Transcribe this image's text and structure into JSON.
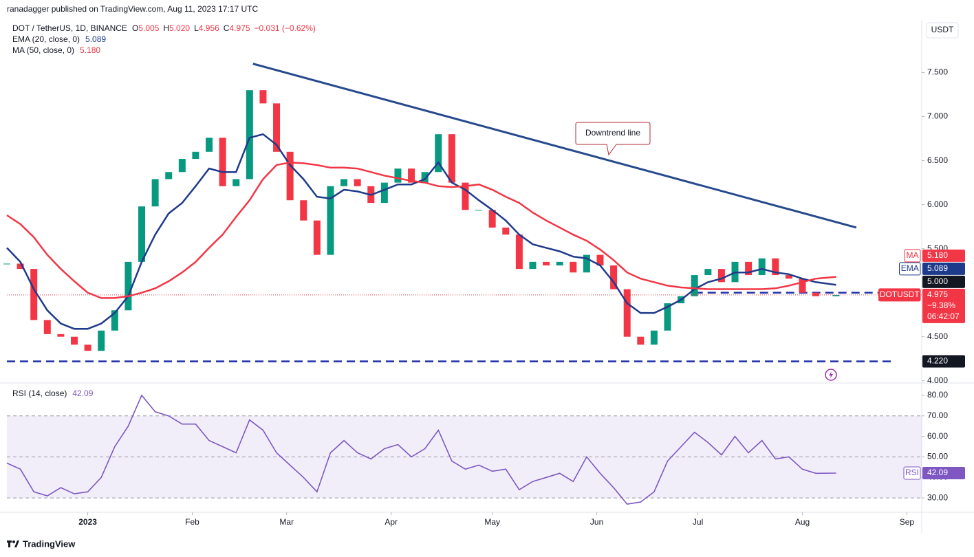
{
  "header": {
    "published": "ranadagger published on TradingView.com, Aug 11, 2023 17:17 UTC"
  },
  "footer": {
    "brand": "TradingView"
  },
  "chart_data": [
    {
      "type": "candlestick",
      "title": "DOT / TetherUS, 1D, BINANCE",
      "quote": [
        {
          "label": "O",
          "value": "5.005"
        },
        {
          "label": "H",
          "value": "5.020"
        },
        {
          "label": "L",
          "value": "4.956"
        },
        {
          "label": "C",
          "value": "4.975"
        }
      ],
      "change": "−0.031 (−0.62%)",
      "y_unit": "USDT",
      "x": [
        0,
        4,
        8,
        12,
        16,
        20,
        24,
        28,
        32,
        36,
        40,
        44,
        48,
        52,
        56,
        60,
        64,
        68,
        72,
        76,
        80,
        84,
        88,
        92,
        96,
        100,
        104,
        108,
        112,
        116,
        120,
        124,
        128,
        132,
        136,
        140,
        144,
        148,
        152,
        156,
        160,
        164,
        168,
        172,
        176,
        180,
        184,
        188,
        192,
        196,
        200,
        204,
        208,
        212,
        216,
        220,
        224,
        228,
        232,
        236,
        240,
        246
      ],
      "closes": [
        5.33,
        5.27,
        4.69,
        4.53,
        4.5,
        4.41,
        4.34,
        4.57,
        4.8,
        5.35,
        5.98,
        6.29,
        6.37,
        6.52,
        6.6,
        6.76,
        6.21,
        6.29,
        7.3,
        7.15,
        6.6,
        6.05,
        5.82,
        5.43,
        6.21,
        6.29,
        6.21,
        6.02,
        6.25,
        6.41,
        6.25,
        6.37,
        6.8,
        6.25,
        5.94,
        5.94,
        5.74,
        5.66,
        5.27,
        5.35,
        5.31,
        5.35,
        5.23,
        5.43,
        5.31,
        5.04,
        4.5,
        4.41,
        4.57,
        4.88,
        4.96,
        5.2,
        5.27,
        5.12,
        5.35,
        5.2,
        5.39,
        5.2,
        5.16,
        5.0,
        4.96,
        4.975
      ],
      "up_color": "#089981",
      "down_color": "#f23645",
      "series": [
        {
          "name": "EMA (20, close, 0)",
          "legend_value": "5.089",
          "color": "#1e3a8a",
          "values": [
            5.51,
            5.35,
            5.04,
            4.8,
            4.65,
            4.59,
            4.59,
            4.65,
            4.77,
            4.96,
            5.35,
            5.66,
            5.9,
            6.02,
            6.21,
            6.41,
            6.37,
            6.37,
            6.76,
            6.8,
            6.68,
            6.45,
            6.29,
            6.09,
            6.07,
            6.17,
            6.15,
            6.11,
            6.17,
            6.23,
            6.23,
            6.29,
            6.48,
            6.25,
            6.17,
            6.05,
            5.94,
            5.82,
            5.66,
            5.55,
            5.51,
            5.47,
            5.41,
            5.39,
            5.31,
            5.12,
            4.88,
            4.77,
            4.77,
            4.84,
            4.92,
            5.04,
            5.12,
            5.16,
            5.23,
            5.23,
            5.27,
            5.23,
            5.21,
            5.16,
            5.12,
            5.089
          ]
        },
        {
          "name": "MA (50, close, 0)",
          "legend_value": "5.180",
          "color": "#f23645",
          "values": [
            5.88,
            5.78,
            5.63,
            5.43,
            5.27,
            5.13,
            5.0,
            4.94,
            4.94,
            4.96,
            5.0,
            5.05,
            5.13,
            5.23,
            5.35,
            5.51,
            5.66,
            5.86,
            6.05,
            6.29,
            6.45,
            6.48,
            6.47,
            6.45,
            6.42,
            6.42,
            6.41,
            6.37,
            6.33,
            6.3,
            6.27,
            6.25,
            6.21,
            6.2,
            6.21,
            6.23,
            6.17,
            6.09,
            6.02,
            5.91,
            5.82,
            5.74,
            5.66,
            5.59,
            5.49,
            5.37,
            5.23,
            5.16,
            5.12,
            5.08,
            5.06,
            5.05,
            5.04,
            5.04,
            5.04,
            5.04,
            5.04,
            5.05,
            5.08,
            5.12,
            5.16,
            5.18
          ]
        }
      ],
      "trendline": {
        "x": [
          73,
          252
        ],
        "values": [
          7.6,
          5.74
        ],
        "color": "#264a8c"
      },
      "annotation": "Downtrend line",
      "levels": [
        {
          "value": 4.22,
          "x": [
            0,
            263
          ]
        },
        {
          "value": 5.0,
          "x": [
            204,
            259
          ]
        }
      ],
      "price_tags": [
        {
          "name": "MA",
          "value": 5.18,
          "label": "5.180",
          "color": "#f23645"
        },
        {
          "name": "EMA",
          "value": 5.089,
          "label": "5.089",
          "color": "#1e3a8a"
        },
        {
          "value": 5.0,
          "label": "5.000",
          "color": "#131722"
        },
        {
          "name": "DOTUSDT",
          "value": 4.975,
          "label": "4.975",
          "extra": [
            "−9.38%",
            "06:42:07"
          ],
          "color": "#f23645"
        },
        {
          "value": 4.22,
          "label": "4.220",
          "color": "#131722"
        }
      ],
      "xlim": [
        0,
        271.4
      ],
      "ylim": [
        3.99,
        8.09
      ],
      "yticks": [
        {
          "value": 4,
          "label": "4.000"
        },
        {
          "value": 4.5,
          "label": "4.500"
        },
        {
          "value": 5,
          "label": "5.000"
        },
        {
          "value": 5.5,
          "label": "5.500"
        },
        {
          "value": 6,
          "label": "6.000"
        },
        {
          "value": 6.5,
          "label": "6.500"
        },
        {
          "value": 7,
          "label": "7.000"
        },
        {
          "value": 7.5,
          "label": "7.500"
        }
      ]
    },
    {
      "type": "line",
      "title": "RSI (14, close)",
      "x": [
        0,
        4,
        8,
        12,
        16,
        20,
        24,
        28,
        32,
        36,
        40,
        44,
        48,
        52,
        56,
        60,
        64,
        68,
        72,
        76,
        80,
        84,
        88,
        92,
        96,
        100,
        104,
        108,
        112,
        116,
        120,
        124,
        128,
        132,
        136,
        140,
        144,
        148,
        152,
        156,
        160,
        164,
        168,
        172,
        176,
        180,
        184,
        188,
        192,
        196,
        200,
        204,
        208,
        212,
        216,
        220,
        224,
        228,
        232,
        236,
        240,
        246
      ],
      "series": [
        {
          "name": "RSI",
          "legend_value": "42.09",
          "color": "#7e57c2",
          "values": [
            47,
            44,
            33,
            31,
            35,
            32,
            33,
            40,
            55,
            65,
            80,
            72,
            70,
            66,
            66,
            58,
            55,
            52,
            68,
            63,
            52,
            46,
            40,
            33,
            52,
            58,
            52,
            49,
            54,
            56,
            50,
            54,
            63,
            48,
            44,
            46,
            43,
            44,
            34,
            38,
            40,
            42,
            38,
            50,
            42,
            35,
            27,
            28,
            33,
            48,
            55,
            62,
            57,
            51,
            60,
            52,
            58,
            49,
            50,
            44,
            42,
            42.09
          ]
        }
      ],
      "band": [
        30,
        70
      ],
      "dashed_levels": [
        30,
        50,
        70
      ],
      "xlim": [
        0,
        271.4
      ],
      "ylim": [
        23,
        85
      ],
      "yticks": [
        {
          "value": 30,
          "label": "30.00"
        },
        {
          "value": 40,
          "label": "40.00"
        },
        {
          "value": 50,
          "label": "50.00"
        },
        {
          "value": 60,
          "label": "60.00"
        },
        {
          "value": 70,
          "label": "70.00"
        },
        {
          "value": 80,
          "label": "80.00"
        }
      ],
      "xticks": [
        {
          "value": 24,
          "label": "2023"
        },
        {
          "value": 55,
          "label": "Feb"
        },
        {
          "value": 83,
          "label": "Mar"
        },
        {
          "value": 114,
          "label": "Apr"
        },
        {
          "value": 144,
          "label": "May"
        },
        {
          "value": 175,
          "label": "Jun"
        },
        {
          "value": 205,
          "label": "Jul"
        },
        {
          "value": 236,
          "label": "Aug"
        },
        {
          "value": 267,
          "label": "Sep"
        }
      ]
    }
  ]
}
